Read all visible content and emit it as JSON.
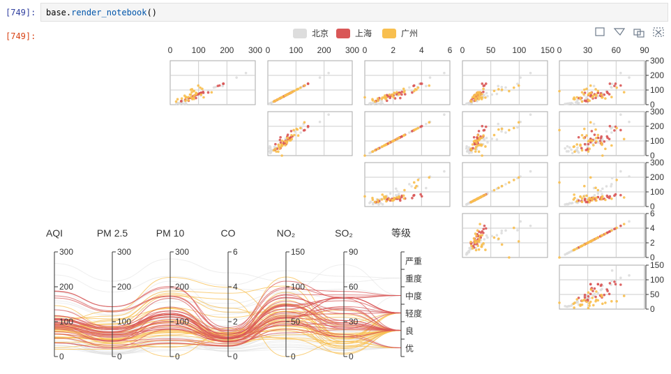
{
  "notebook": {
    "in_prompt": "[749]:",
    "out_prompt": "[749]:",
    "code": {
      "object": "base",
      "dot": ".",
      "method": "render_notebook",
      "parens": "()"
    }
  },
  "toolbox": [
    "rect-select-icon",
    "lasso-select-icon",
    "keep-select-icon",
    "clear-select-icon"
  ],
  "chart_data": {
    "type": "scatter-matrix + parallel",
    "legend": [
      {
        "name": "北京",
        "color": "#dddddd"
      },
      {
        "name": "上海",
        "color": "#d95757"
      },
      {
        "name": "广州",
        "color": "#f8bf4f"
      }
    ],
    "matrix_top_ticks": [
      [
        "0",
        "100",
        "200",
        "300"
      ],
      [
        "0",
        "100",
        "200",
        "300"
      ],
      [
        "0",
        "2",
        "4",
        "6"
      ],
      [
        "0",
        "50",
        "100",
        "150"
      ],
      [
        "0",
        "30",
        "60",
        "90"
      ]
    ],
    "matrix_right_ticks": [
      [
        "300",
        "200",
        "100",
        "0"
      ],
      [
        "300",
        "200",
        "100",
        "0"
      ],
      [
        "300",
        "200",
        "100",
        "0"
      ],
      [
        "6",
        "4",
        "2",
        "0"
      ],
      [
        "150",
        "100",
        "50",
        "0"
      ]
    ],
    "matrix_dims": [
      "AQI",
      "PM 2.5",
      "PM 10",
      "CO",
      "NO₂",
      "SO₂"
    ],
    "parallel": {
      "axes": [
        {
          "name": "AQI",
          "ticks": [
            "300",
            "200",
            "100",
            "0"
          ],
          "range": [
            0,
            300
          ]
        },
        {
          "name": "PM 2.5",
          "ticks": [
            "300",
            "200",
            "100",
            "0"
          ],
          "range": [
            0,
            300
          ]
        },
        {
          "name": "PM 10",
          "ticks": [
            "300",
            "200",
            "100",
            "0"
          ],
          "range": [
            0,
            300
          ]
        },
        {
          "name": "CO",
          "ticks": [
            "6",
            "4",
            "2",
            "0"
          ],
          "range": [
            0,
            6
          ]
        },
        {
          "name": "NO₂",
          "ticks": [
            "150",
            "100",
            "50",
            "0"
          ],
          "range": [
            0,
            150
          ]
        },
        {
          "name": "SO₂",
          "ticks": [
            "90",
            "60",
            "30",
            "0"
          ],
          "range": [
            0,
            90
          ]
        },
        {
          "name": "等级",
          "ticks": [
            "严重",
            "重度",
            "中度",
            "轻度",
            "良",
            "优"
          ],
          "category": true
        }
      ]
    },
    "series": {
      "北京": [
        [
          55,
          9,
          56,
          0.46,
          18,
          6,
          "良"
        ],
        [
          25,
          11,
          21,
          0.65,
          34,
          9,
          "优"
        ],
        [
          56,
          7,
          63,
          0.3,
          14,
          5,
          "良"
        ],
        [
          33,
          7,
          29,
          0.33,
          16,
          6,
          "优"
        ],
        [
          42,
          24,
          44,
          0.76,
          40,
          16,
          "优"
        ],
        [
          82,
          58,
          90,
          1.77,
          68,
          33,
          "良"
        ],
        [
          74,
          49,
          77,
          1.46,
          48,
          27,
          "良"
        ],
        [
          78,
          55,
          80,
          1.29,
          59,
          29,
          "良"
        ],
        [
          267,
          216,
          280,
          4.8,
          108,
          64,
          "重度"
        ],
        [
          185,
          127,
          216,
          2.52,
          61,
          27,
          "中度"
        ],
        [
          39,
          19,
          38,
          0.57,
          31,
          15,
          "优"
        ],
        [
          41,
          11,
          40,
          0.43,
          21,
          7,
          "优"
        ],
        [
          64,
          38,
          74,
          1.04,
          46,
          22,
          "良"
        ],
        [
          108,
          79,
          120,
          1.7,
          75,
          41,
          "轻度"
        ],
        [
          108,
          63,
          116,
          1.48,
          44,
          26,
          "轻度"
        ],
        [
          33,
          6,
          29,
          0.34,
          13,
          5,
          "优"
        ],
        [
          94,
          66,
          110,
          1.54,
          62,
          31,
          "良"
        ],
        [
          186,
          142,
          192,
          3.88,
          93,
          79,
          "中度"
        ],
        [
          57,
          31,
          54,
          0.96,
          32,
          14,
          "良"
        ],
        [
          22,
          8,
          17,
          0.48,
          23,
          10,
          "优"
        ],
        [
          39,
          15,
          36,
          0.61,
          29,
          13,
          "优"
        ],
        [
          94,
          69,
          114,
          2.08,
          73,
          39,
          "良"
        ],
        [
          99,
          73,
          110,
          2.43,
          76,
          48,
          "良"
        ],
        [
          31,
          12,
          30,
          0.5,
          32,
          16,
          "优"
        ],
        [
          42,
          27,
          43,
          1,
          53,
          22,
          "优"
        ],
        [
          154,
          117,
          157,
          3.05,
          92,
          58,
          "中度"
        ],
        [
          234,
          185,
          230,
          4.09,
          123,
          69,
          "重度"
        ],
        [
          160,
          120,
          186,
          2.77,
          91,
          50,
          "中度"
        ],
        [
          134,
          96,
          165,
          2.76,
          83,
          41,
          "轻度"
        ],
        [
          52,
          24,
          60,
          1.03,
          50,
          21,
          "良"
        ],
        [
          46,
          5,
          49,
          0.28,
          10,
          6,
          "优"
        ]
      ],
      "上海": [
        [
          91,
          45,
          125,
          0.82,
          34,
          23,
          "良"
        ],
        [
          65,
          27,
          78,
          0.86,
          45,
          29,
          "良"
        ],
        [
          83,
          60,
          84,
          1.09,
          73,
          27,
          "良"
        ],
        [
          109,
          81,
          121,
          1.28,
          68,
          51,
          "轻度"
        ],
        [
          106,
          77,
          114,
          1.07,
          55,
          51,
          "轻度"
        ],
        [
          109,
          81,
          121,
          1.28,
          68,
          51,
          "轻度"
        ],
        [
          106,
          77,
          114,
          1.07,
          55,
          51,
          "轻度"
        ],
        [
          89,
          65,
          78,
          0.86,
          51,
          26,
          "良"
        ],
        [
          53,
          33,
          47,
          0.64,
          50,
          17,
          "良"
        ],
        [
          80,
          55,
          80,
          1.01,
          75,
          24,
          "良"
        ],
        [
          117,
          81,
          124,
          1.03,
          45,
          24,
          "轻度"
        ],
        [
          99,
          71,
          142,
          1.1,
          62,
          42,
          "良"
        ],
        [
          95,
          69,
          130,
          1.28,
          74,
          50,
          "良"
        ],
        [
          116,
          87,
          131,
          1.47,
          84,
          40,
          "轻度"
        ],
        [
          108,
          80,
          121,
          1.3,
          85,
          37,
          "轻度"
        ],
        [
          134,
          83,
          167,
          1.16,
          57,
          43,
          "轻度"
        ],
        [
          79,
          43,
          107,
          1.05,
          59,
          37,
          "良"
        ],
        [
          71,
          46,
          89,
          0.86,
          64,
          25,
          "良"
        ],
        [
          97,
          71,
          113,
          1.17,
          88,
          31,
          "良"
        ],
        [
          84,
          57,
          91,
          0.85,
          55,
          31,
          "良"
        ],
        [
          87,
          63,
          101,
          0.9,
          56,
          41,
          "良"
        ],
        [
          104,
          77,
          119,
          1.09,
          73,
          48,
          "轻度"
        ],
        [
          87,
          62,
          100,
          1,
          72,
          28,
          "良"
        ],
        [
          168,
          128,
          172,
          1.49,
          97,
          56,
          "中度"
        ],
        [
          65,
          45,
          51,
          0.74,
          39,
          17,
          "良"
        ],
        [
          39,
          24,
          38,
          0.61,
          47,
          17,
          "优"
        ],
        [
          39,
          24,
          39,
          0.59,
          50,
          19,
          "优"
        ],
        [
          93,
          68,
          96,
          1.05,
          79,
          29,
          "良"
        ],
        [
          188,
          143,
          197,
          1.66,
          99,
          51,
          "中度"
        ],
        [
          174,
          131,
          174,
          1.55,
          108,
          50,
          "中度"
        ],
        [
          187,
          143,
          201,
          1.39,
          89,
          53,
          "中度"
        ]
      ],
      "广州": [
        [
          26,
          37,
          27,
          1.163,
          27,
          13,
          "优"
        ],
        [
          85,
          62,
          71,
          1.195,
          60,
          8,
          "良"
        ],
        [
          78,
          38,
          74,
          1.363,
          37,
          7,
          "良"
        ],
        [
          21,
          21,
          36,
          0.634,
          40,
          9,
          "优"
        ],
        [
          41,
          42,
          46,
          0.915,
          81,
          13,
          "优"
        ],
        [
          56,
          52,
          69,
          1.067,
          92,
          16,
          "良"
        ],
        [
          64,
          30,
          28,
          0.924,
          51,
          2,
          "良"
        ],
        [
          55,
          48,
          74,
          1.236,
          75,
          26,
          "良"
        ],
        [
          76,
          85,
          113,
          1.237,
          114,
          27,
          "良"
        ],
        [
          91,
          81,
          104,
          1.041,
          56,
          40,
          "良"
        ],
        [
          84,
          39,
          60,
          0.964,
          25,
          11,
          "良"
        ],
        [
          64,
          51,
          101,
          0.862,
          58,
          23,
          "良"
        ],
        [
          70,
          69,
          120,
          1.198,
          65,
          36,
          "良"
        ],
        [
          77,
          105,
          178,
          2.549,
          64,
          16,
          "良"
        ],
        [
          109,
          68,
          87,
          0.996,
          74,
          29,
          "轻度"
        ],
        [
          73,
          68,
          97,
          0.905,
          51,
          34,
          "良"
        ],
        [
          54,
          27,
          47,
          0.592,
          53,
          12,
          "良"
        ],
        [
          51,
          61,
          97,
          0.811,
          65,
          19,
          "良"
        ],
        [
          91,
          71,
          121,
          1.374,
          43,
          18,
          "良"
        ],
        [
          73,
          102,
          182,
          2.787,
          44,
          19,
          "良"
        ],
        [
          73,
          50,
          76,
          0.717,
          31,
          20,
          "良"
        ],
        [
          84,
          94,
          140,
          2.238,
          68,
          18,
          "良"
        ],
        [
          93,
          77,
          104,
          1.165,
          53,
          7,
          "良"
        ],
        [
          99,
          130,
          227,
          3.97,
          55,
          15,
          "良"
        ],
        [
          146,
          84,
          139,
          1.094,
          40,
          17,
          "轻度"
        ],
        [
          113,
          108,
          137,
          1.481,
          48,
          15,
          "轻度"
        ],
        [
          81,
          48,
          62,
          1.619,
          26,
          3,
          "良"
        ],
        [
          56,
          48,
          68,
          1.336,
          37,
          9,
          "良"
        ],
        [
          82,
          92,
          174,
          3.29,
          0,
          13,
          "良"
        ],
        [
          106,
          116,
          188,
          3.628,
          101,
          16,
          "轻度"
        ],
        [
          118,
          50,
          0,
          1.383,
          76,
          11,
          "轻度"
        ]
      ]
    }
  }
}
